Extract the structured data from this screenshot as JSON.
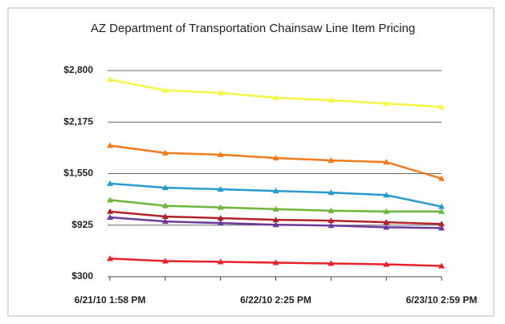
{
  "chart_data": {
    "type": "line",
    "title": "AZ Department of Transportation Chainsaw Line Item Pricing",
    "categories": [
      "6/21/10 1:58 PM",
      null,
      null,
      "6/22/10 2:25 PM",
      null,
      null,
      "6/23/10 2:59 PM"
    ],
    "series": [
      {
        "color": "#f5f542",
        "values": [
          2690,
          2560,
          2530,
          2470,
          2440,
          2400,
          2360
        ]
      },
      {
        "color": "#f07a1c",
        "values": [
          1890,
          1800,
          1780,
          1740,
          1710,
          1690,
          1490
        ]
      },
      {
        "color": "#2a9ad0",
        "values": [
          1430,
          1380,
          1360,
          1340,
          1320,
          1290,
          1150
        ]
      },
      {
        "color": "#6cb63a",
        "values": [
          1230,
          1160,
          1140,
          1120,
          1100,
          1090,
          1090
        ]
      },
      {
        "color": "#b0232a",
        "values": [
          1090,
          1030,
          1010,
          990,
          980,
          960,
          940
        ]
      },
      {
        "color": "#6a3b9a",
        "values": [
          1020,
          970,
          950,
          930,
          920,
          900,
          890
        ]
      },
      {
        "color": "#e8202a",
        "values": [
          520,
          490,
          480,
          470,
          460,
          450,
          430
        ]
      }
    ],
    "ylim": [
      300,
      2800
    ],
    "yticks": [
      {
        "value": 300,
        "label": "$300"
      },
      {
        "value": 925,
        "label": "$925"
      },
      {
        "value": 1550,
        "label": "$1,550"
      },
      {
        "value": 2175,
        "label": "$2,175"
      },
      {
        "value": 2800,
        "label": "$2,800"
      }
    ],
    "grid": true
  }
}
